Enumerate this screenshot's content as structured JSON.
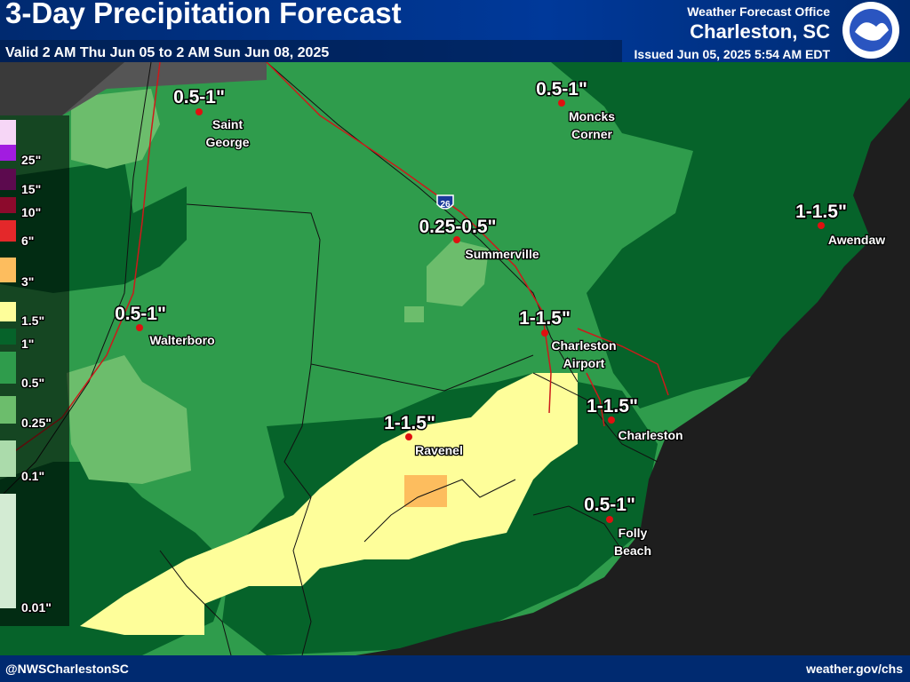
{
  "header": {
    "title": "3-Day Precipitation Forecast",
    "valid": "Valid 2 AM Thu Jun 05 to 2 AM Sun Jun 08, 2025",
    "office": "Weather Forecast Office",
    "location": "Charleston, SC",
    "issued": "Issued Jun 05, 2025 5:54 AM EDT"
  },
  "legend": [
    {
      "label": "25\"",
      "color": "#a21ce0"
    },
    {
      "label": "15\"",
      "color": "#5c0a4e"
    },
    {
      "label": "10\"",
      "color": "#8c0a2c"
    },
    {
      "label": "6\"",
      "color": "#e4282a"
    },
    {
      "label": "3\"",
      "color": "#fdbd5e"
    },
    {
      "label": "1.5\"",
      "color": "#fefe9a"
    },
    {
      "label": "1\"",
      "color": "#06632a"
    },
    {
      "label": "0.5\"",
      "color": "#2f9c4c"
    },
    {
      "label": "0.25\"",
      "color": "#6cbd6c"
    },
    {
      "label": "0.1\"",
      "color": "#abdbab"
    },
    {
      "label": "0.01\"",
      "color": "#d3ebd3"
    }
  ],
  "places": [
    {
      "amount": "0.5-1\"",
      "name": [
        "Saint",
        "George"
      ]
    },
    {
      "amount": "0.5-1\"",
      "name": [
        "Moncks",
        "Corner"
      ]
    },
    {
      "amount": "0.25-0.5\"",
      "name": [
        "Summerville"
      ]
    },
    {
      "amount": "1-1.5\"",
      "name": [
        "Awendaw"
      ]
    },
    {
      "amount": "0.5-1\"",
      "name": [
        "Walterboro"
      ]
    },
    {
      "amount": "1-1.5\"",
      "name": [
        "Charleston",
        "Airport"
      ]
    },
    {
      "amount": "1-1.5\"",
      "name": [
        "Charleston"
      ]
    },
    {
      "amount": "1-1.5\"",
      "name": [
        "Ravenel"
      ]
    },
    {
      "amount": "0.5-1\"",
      "name": [
        "Folly",
        "Beach"
      ]
    }
  ],
  "interstate": "26",
  "footer": {
    "social": "@NWSCharlestonSC",
    "website": "weather.gov/chs"
  }
}
